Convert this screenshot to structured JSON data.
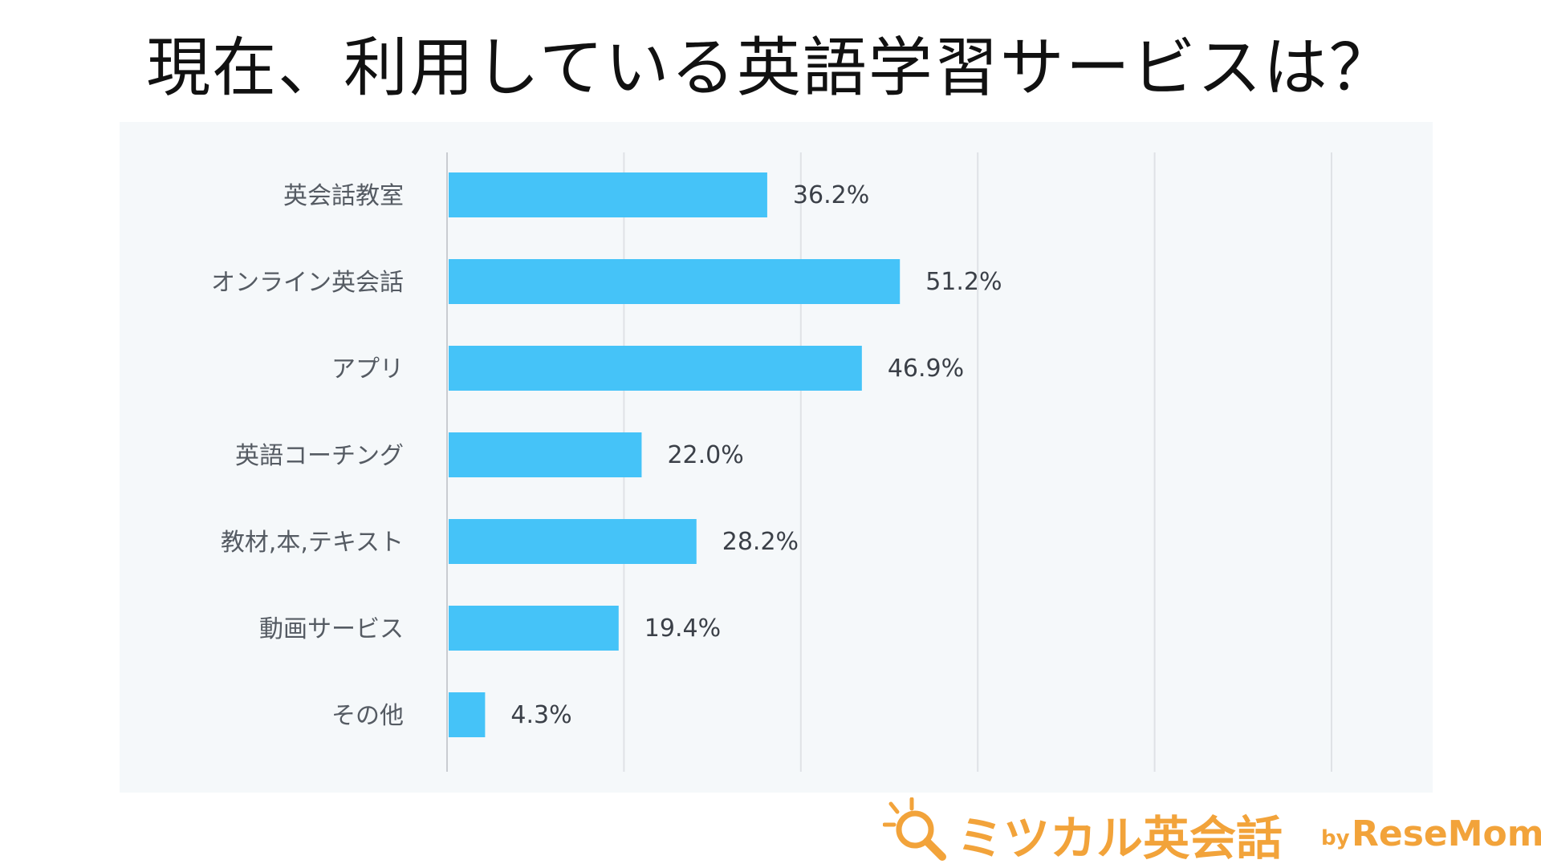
{
  "title": "現在、利用している英語学習サービスは？",
  "chart_data": {
    "type": "bar",
    "orientation": "horizontal",
    "categories": [
      "英会話教室",
      "オンライン英会話",
      "アプリ",
      "英語コーチング",
      "教材,本,テキスト",
      "動画サービス",
      "その他"
    ],
    "values": [
      36.2,
      51.2,
      46.9,
      22.0,
      28.2,
      19.4,
      4.3
    ],
    "value_labels": [
      "36.2%",
      "51.2%",
      "46.9%",
      "22.0%",
      "28.2%",
      "19.4%",
      "4.3%"
    ],
    "xlim": [
      0,
      100
    ],
    "grid": true,
    "bar_color": "#45c3f8"
  },
  "logo": {
    "main_text": "ミツカル英会話",
    "by_text": "by",
    "brand_text": "ReseMom",
    "color": "#f2a33a"
  }
}
